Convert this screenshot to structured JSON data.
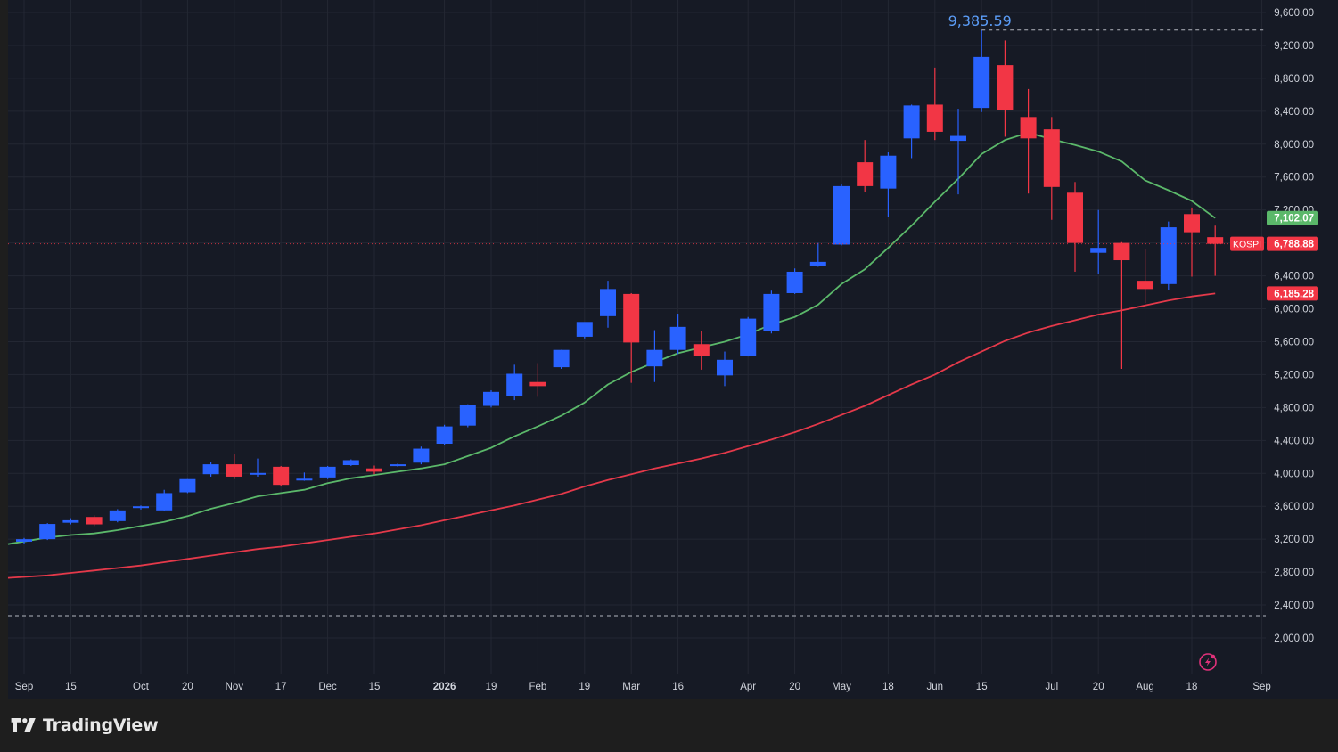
{
  "chart_data": {
    "type": "candlestick",
    "symbol": "KOSPI",
    "interval": "weekly",
    "yaxis": {
      "ticks": [
        2000,
        2400,
        2800,
        3200,
        3600,
        4000,
        4400,
        4800,
        5200,
        5600,
        6000,
        6400,
        6800,
        7200,
        7600,
        8000,
        8400,
        8800,
        9200,
        9600
      ],
      "tick_labels": [
        "2,000.00",
        "2,400.00",
        "2,800.00",
        "3,200.00",
        "3,600.00",
        "4,000.00",
        "4,400.00",
        "4,800.00",
        "5,200.00",
        "5,600.00",
        "6,000.00",
        "6,400.00",
        "6,800.00",
        "7,200.00",
        "7,600.00",
        "8,000.00",
        "8,400.00",
        "8,800.00",
        "9,200.00",
        "9,600.00"
      ],
      "range": [
        1600,
        9700
      ]
    },
    "xaxis": {
      "labels": [
        {
          "text": "Sep",
          "week": 0
        },
        {
          "text": "15",
          "week": 2
        },
        {
          "text": "Oct",
          "week": 5
        },
        {
          "text": "20",
          "week": 7
        },
        {
          "text": "Nov",
          "week": 9
        },
        {
          "text": "17",
          "week": 11
        },
        {
          "text": "Dec",
          "week": 13
        },
        {
          "text": "15",
          "week": 15
        },
        {
          "text": "2026",
          "week": 18
        },
        {
          "text": "19",
          "week": 20
        },
        {
          "text": "Feb",
          "week": 22
        },
        {
          "text": "19",
          "week": 24
        },
        {
          "text": "Mar",
          "week": 26
        },
        {
          "text": "16",
          "week": 28
        },
        {
          "text": "Apr",
          "week": 31
        },
        {
          "text": "20",
          "week": 33
        },
        {
          "text": "May",
          "week": 35
        },
        {
          "text": "18",
          "week": 37
        },
        {
          "text": "Jun",
          "week": 39
        },
        {
          "text": "15",
          "week": 41
        },
        {
          "text": "Jul",
          "week": 44
        },
        {
          "text": "20",
          "week": 46
        },
        {
          "text": "Aug",
          "week": 48
        },
        {
          "text": "18",
          "week": 50
        },
        {
          "text": "Sep",
          "week": 53
        }
      ]
    },
    "candles": [
      {
        "o": 3170,
        "h": 3215,
        "l": 3140,
        "c": 3200
      },
      {
        "o": 3200,
        "h": 3395,
        "l": 3190,
        "c": 3385
      },
      {
        "o": 3400,
        "h": 3455,
        "l": 3380,
        "c": 3430
      },
      {
        "o": 3470,
        "h": 3490,
        "l": 3360,
        "c": 3380
      },
      {
        "o": 3420,
        "h": 3565,
        "l": 3405,
        "c": 3550
      },
      {
        "o": 3590,
        "h": 3610,
        "l": 3560,
        "c": 3600
      },
      {
        "o": 3550,
        "h": 3800,
        "l": 3540,
        "c": 3760
      },
      {
        "o": 3770,
        "h": 3930,
        "l": 3760,
        "c": 3930
      },
      {
        "o": 3990,
        "h": 4140,
        "l": 3960,
        "c": 4110
      },
      {
        "o": 4110,
        "h": 4230,
        "l": 3930,
        "c": 3960
      },
      {
        "o": 3990,
        "h": 4180,
        "l": 3960,
        "c": 4005
      },
      {
        "o": 4080,
        "h": 4090,
        "l": 3840,
        "c": 3860
      },
      {
        "o": 3930,
        "h": 4010,
        "l": 3910,
        "c": 3935
      },
      {
        "o": 3950,
        "h": 4090,
        "l": 3930,
        "c": 4080
      },
      {
        "o": 4100,
        "h": 4170,
        "l": 4090,
        "c": 4160
      },
      {
        "o": 4060,
        "h": 4095,
        "l": 3990,
        "c": 4020
      },
      {
        "o": 4090,
        "h": 4120,
        "l": 4080,
        "c": 4110
      },
      {
        "o": 4130,
        "h": 4325,
        "l": 4110,
        "c": 4300
      },
      {
        "o": 4360,
        "h": 4590,
        "l": 4340,
        "c": 4570
      },
      {
        "o": 4580,
        "h": 4840,
        "l": 4560,
        "c": 4830
      },
      {
        "o": 4820,
        "h": 5010,
        "l": 4800,
        "c": 4990
      },
      {
        "o": 4940,
        "h": 5320,
        "l": 4890,
        "c": 5210
      },
      {
        "o": 5110,
        "h": 5340,
        "l": 4930,
        "c": 5060
      },
      {
        "o": 5290,
        "h": 5500,
        "l": 5270,
        "c": 5500
      },
      {
        "o": 5660,
        "h": 5780,
        "l": 5640,
        "c": 5840
      },
      {
        "o": 5910,
        "h": 6340,
        "l": 5770,
        "c": 6240
      },
      {
        "o": 6180,
        "h": 6190,
        "l": 5100,
        "c": 5590
      },
      {
        "o": 5300,
        "h": 5740,
        "l": 5110,
        "c": 5500
      },
      {
        "o": 5500,
        "h": 5940,
        "l": 5450,
        "c": 5780
      },
      {
        "o": 5570,
        "h": 5730,
        "l": 5260,
        "c": 5430
      },
      {
        "o": 5190,
        "h": 5480,
        "l": 5060,
        "c": 5380
      },
      {
        "o": 5430,
        "h": 5900,
        "l": 5420,
        "c": 5880
      },
      {
        "o": 5730,
        "h": 6220,
        "l": 5700,
        "c": 6180
      },
      {
        "o": 6190,
        "h": 6490,
        "l": 6180,
        "c": 6450
      },
      {
        "o": 6520,
        "h": 6800,
        "l": 6510,
        "c": 6570
      },
      {
        "o": 6780,
        "h": 7510,
        "l": 6770,
        "c": 7490
      },
      {
        "o": 7780,
        "h": 8050,
        "l": 7420,
        "c": 7490
      },
      {
        "o": 7460,
        "h": 7900,
        "l": 7110,
        "c": 7860
      },
      {
        "o": 8070,
        "h": 8480,
        "l": 7830,
        "c": 8470
      },
      {
        "o": 8480,
        "h": 8930,
        "l": 8050,
        "c": 8150
      },
      {
        "o": 8040,
        "h": 8430,
        "l": 7390,
        "c": 8100
      },
      {
        "o": 8440,
        "h": 9385.59,
        "l": 8390,
        "c": 9060
      },
      {
        "o": 8960,
        "h": 9260,
        "l": 8090,
        "c": 8410
      },
      {
        "o": 8330,
        "h": 8670,
        "l": 7400,
        "c": 8070
      },
      {
        "o": 8180,
        "h": 8330,
        "l": 7080,
        "c": 7480
      },
      {
        "o": 7410,
        "h": 7540,
        "l": 6450,
        "c": 6800
      },
      {
        "o": 6680,
        "h": 7200,
        "l": 6420,
        "c": 6740
      },
      {
        "o": 6800,
        "h": 6810,
        "l": 5270,
        "c": 6590
      },
      {
        "o": 6340,
        "h": 6720,
        "l": 6070,
        "c": 6240
      },
      {
        "o": 6300,
        "h": 7060,
        "l": 6230,
        "c": 6990
      },
      {
        "o": 7150,
        "h": 7230,
        "l": 6390,
        "c": 6930
      },
      {
        "o": 6870,
        "h": 7010,
        "l": 6400,
        "c": 6788.88
      }
    ],
    "series": [
      {
        "values": [
          3140,
          3220,
          3250,
          3270,
          3310,
          3360,
          3410,
          3480,
          3570,
          3640,
          3720,
          3760,
          3800,
          3880,
          3940,
          3980,
          4020,
          4060,
          4110,
          4210,
          4310,
          4450,
          4570,
          4700,
          4860,
          5080,
          5230,
          5350,
          5460,
          5530,
          5600,
          5690,
          5810,
          5900,
          6050,
          6300,
          6480,
          6740,
          7010,
          7300,
          7580,
          7880,
          8050,
          8140,
          8060,
          7990,
          7910,
          7790,
          7560,
          7440,
          7310,
          7102.07
        ],
        "color": "#5bb86a"
      },
      {
        "values": [
          2730,
          2760,
          2790,
          2820,
          2850,
          2880,
          2920,
          2960,
          3000,
          3040,
          3080,
          3110,
          3150,
          3190,
          3230,
          3270,
          3320,
          3370,
          3430,
          3490,
          3550,
          3610,
          3680,
          3750,
          3840,
          3920,
          3990,
          4060,
          4120,
          4180,
          4250,
          4330,
          4410,
          4500,
          4600,
          4710,
          4820,
          4950,
          5080,
          5200,
          5350,
          5480,
          5610,
          5710,
          5790,
          5860,
          5930,
          5980,
          6040,
          6100,
          6150,
          6185.28
        ],
        "color": "#e4394a"
      }
    ],
    "annotations": {
      "high_label": "9,385.59",
      "high_value": 9385.59,
      "low_dashed_value": 2270,
      "last_price_label": "6,788.88",
      "last_price_value": 6788.88,
      "symbol_label": "KOSPI",
      "ma_short_label": "7,102.07",
      "ma_short_value": 7102.07,
      "ma_long_label": "6,185.28",
      "ma_long_value": 6185.28
    },
    "colors": {
      "background": "#161a25",
      "grid": "#232733",
      "up": "#2962ff",
      "down": "#f23645",
      "ma_short": "#5bb86a",
      "ma_long": "#e4394a",
      "axis_text": "#d1d4dc",
      "high_text": "#5b9cf6"
    }
  },
  "footer": {
    "brand": "TradingView"
  }
}
